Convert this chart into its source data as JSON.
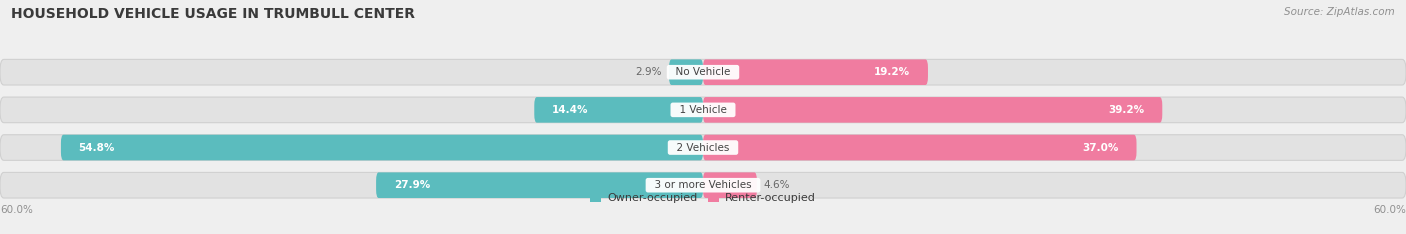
{
  "title": "HOUSEHOLD VEHICLE USAGE IN TRUMBULL CENTER",
  "source": "Source: ZipAtlas.com",
  "categories": [
    "No Vehicle",
    "1 Vehicle",
    "2 Vehicles",
    "3 or more Vehicles"
  ],
  "owner_values": [
    2.9,
    14.4,
    54.8,
    27.9
  ],
  "renter_values": [
    19.2,
    39.2,
    37.0,
    4.6
  ],
  "owner_color": "#5bbcbe",
  "renter_color": "#f07ca0",
  "axis_max": 60.0,
  "background_color": "#efefef",
  "bar_bg_color": "#e2e2e2",
  "bar_bg_border": "#d0d0d0",
  "title_color": "#3a3a3a",
  "source_color": "#909090",
  "label_color_inner_white": "#ffffff",
  "label_color_outer": "#666666",
  "center_label_color": "#444444",
  "legend_owner": "Owner-occupied",
  "legend_renter": "Renter-occupied",
  "axis_label_left": "60.0%",
  "axis_label_right": "60.0%"
}
